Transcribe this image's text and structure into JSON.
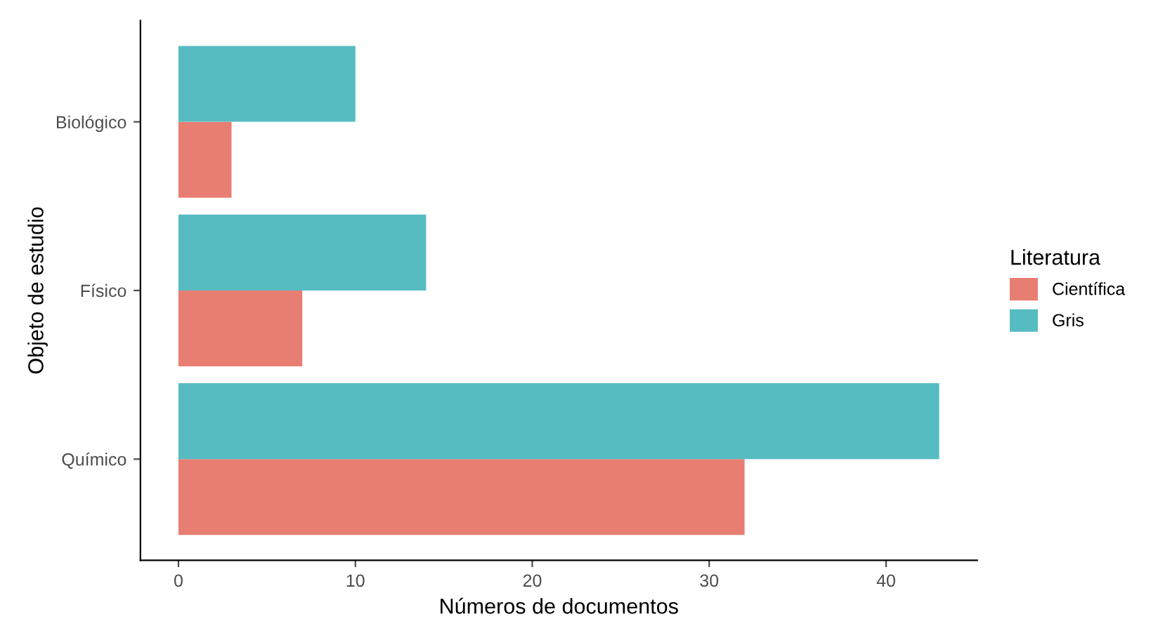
{
  "chart_data": {
    "type": "bar",
    "orientation": "horizontal",
    "xlabel": "Números de documentos",
    "ylabel": "Objeto de estudio",
    "legend_title": "Literatura",
    "legend": "right",
    "categories": [
      "Biológico",
      "Físico",
      "Químico"
    ],
    "series": [
      {
        "name": "Científica",
        "color": "#e87d72",
        "values": [
          3,
          7,
          32
        ]
      },
      {
        "name": "Gris",
        "color": "#56bcc2",
        "values": [
          10,
          14,
          43
        ]
      }
    ],
    "xlim": [
      -2.15,
      45.15
    ],
    "xticks": [
      0,
      10,
      20,
      30,
      40
    ],
    "grid": false
  }
}
